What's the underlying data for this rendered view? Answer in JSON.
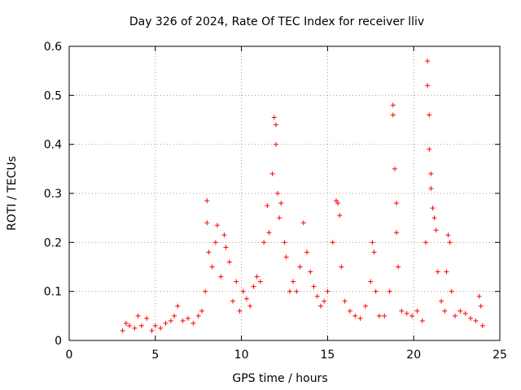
{
  "chart_data": {
    "type": "scatter",
    "title": "Day 326 of 2024, Rate Of TEC Index for receiver lliv",
    "xlabel": "GPS time / hours",
    "ylabel": "ROTI / TECUs",
    "xlim": [
      0,
      25
    ],
    "ylim": [
      0,
      0.6
    ],
    "xticks": [
      0,
      5,
      10,
      15,
      20,
      25
    ],
    "yticks": [
      0,
      0.1,
      0.2,
      0.3,
      0.4,
      0.5,
      0.6
    ],
    "grid": true,
    "marker": "+",
    "marker_color": "#ff0000",
    "series": [
      {
        "name": "ROTI",
        "points": [
          [
            3.1,
            0.02
          ],
          [
            3.3,
            0.035
          ],
          [
            3.5,
            0.03
          ],
          [
            3.8,
            0.025
          ],
          [
            4.0,
            0.05
          ],
          [
            4.2,
            0.03
          ],
          [
            4.5,
            0.045
          ],
          [
            4.8,
            0.02
          ],
          [
            5.0,
            0.03
          ],
          [
            5.3,
            0.025
          ],
          [
            5.6,
            0.035
          ],
          [
            5.9,
            0.04
          ],
          [
            6.1,
            0.05
          ],
          [
            6.3,
            0.07
          ],
          [
            6.6,
            0.04
          ],
          [
            6.9,
            0.045
          ],
          [
            7.2,
            0.035
          ],
          [
            7.5,
            0.05
          ],
          [
            7.7,
            0.06
          ],
          [
            7.9,
            0.1
          ],
          [
            8.0,
            0.285
          ],
          [
            8.0,
            0.24
          ],
          [
            8.1,
            0.18
          ],
          [
            8.3,
            0.15
          ],
          [
            8.5,
            0.2
          ],
          [
            8.6,
            0.235
          ],
          [
            8.8,
            0.13
          ],
          [
            9.0,
            0.215
          ],
          [
            9.1,
            0.19
          ],
          [
            9.3,
            0.16
          ],
          [
            9.5,
            0.08
          ],
          [
            9.7,
            0.12
          ],
          [
            9.9,
            0.06
          ],
          [
            10.1,
            0.1
          ],
          [
            10.3,
            0.085
          ],
          [
            10.5,
            0.07
          ],
          [
            10.7,
            0.11
          ],
          [
            10.9,
            0.13
          ],
          [
            11.1,
            0.12
          ],
          [
            11.3,
            0.2
          ],
          [
            11.5,
            0.275
          ],
          [
            11.6,
            0.22
          ],
          [
            11.8,
            0.34
          ],
          [
            11.9,
            0.455
          ],
          [
            12.0,
            0.44
          ],
          [
            12.0,
            0.4
          ],
          [
            12.1,
            0.3
          ],
          [
            12.2,
            0.25
          ],
          [
            12.3,
            0.28
          ],
          [
            12.5,
            0.2
          ],
          [
            12.6,
            0.17
          ],
          [
            12.8,
            0.1
          ],
          [
            13.0,
            0.12
          ],
          [
            13.2,
            0.1
          ],
          [
            13.4,
            0.15
          ],
          [
            13.6,
            0.24
          ],
          [
            13.8,
            0.18
          ],
          [
            14.0,
            0.14
          ],
          [
            14.2,
            0.11
          ],
          [
            14.4,
            0.09
          ],
          [
            14.6,
            0.07
          ],
          [
            14.8,
            0.08
          ],
          [
            15.0,
            0.1
          ],
          [
            15.3,
            0.2
          ],
          [
            15.5,
            0.285
          ],
          [
            15.6,
            0.28
          ],
          [
            15.7,
            0.255
          ],
          [
            15.8,
            0.15
          ],
          [
            16.0,
            0.08
          ],
          [
            16.3,
            0.06
          ],
          [
            16.6,
            0.05
          ],
          [
            16.9,
            0.045
          ],
          [
            17.2,
            0.07
          ],
          [
            17.5,
            0.12
          ],
          [
            17.6,
            0.2
          ],
          [
            17.7,
            0.18
          ],
          [
            17.8,
            0.1
          ],
          [
            18.0,
            0.05
          ],
          [
            18.3,
            0.05
          ],
          [
            18.6,
            0.1
          ],
          [
            18.8,
            0.46
          ],
          [
            18.8,
            0.48
          ],
          [
            18.9,
            0.35
          ],
          [
            19.0,
            0.28
          ],
          [
            19.0,
            0.22
          ],
          [
            19.1,
            0.15
          ],
          [
            19.3,
            0.06
          ],
          [
            19.6,
            0.055
          ],
          [
            19.9,
            0.05
          ],
          [
            20.2,
            0.06
          ],
          [
            20.5,
            0.04
          ],
          [
            20.7,
            0.2
          ],
          [
            20.8,
            0.57
          ],
          [
            20.8,
            0.52
          ],
          [
            20.9,
            0.46
          ],
          [
            20.9,
            0.39
          ],
          [
            21.0,
            0.34
          ],
          [
            21.0,
            0.31
          ],
          [
            21.1,
            0.27
          ],
          [
            21.2,
            0.25
          ],
          [
            21.3,
            0.225
          ],
          [
            21.4,
            0.14
          ],
          [
            21.6,
            0.08
          ],
          [
            21.8,
            0.06
          ],
          [
            21.9,
            0.14
          ],
          [
            22.0,
            0.215
          ],
          [
            22.1,
            0.2
          ],
          [
            22.2,
            0.1
          ],
          [
            22.4,
            0.05
          ],
          [
            22.7,
            0.06
          ],
          [
            23.0,
            0.055
          ],
          [
            23.3,
            0.045
          ],
          [
            23.6,
            0.04
          ],
          [
            23.8,
            0.09
          ],
          [
            23.9,
            0.07
          ],
          [
            24.0,
            0.03
          ]
        ]
      }
    ]
  }
}
